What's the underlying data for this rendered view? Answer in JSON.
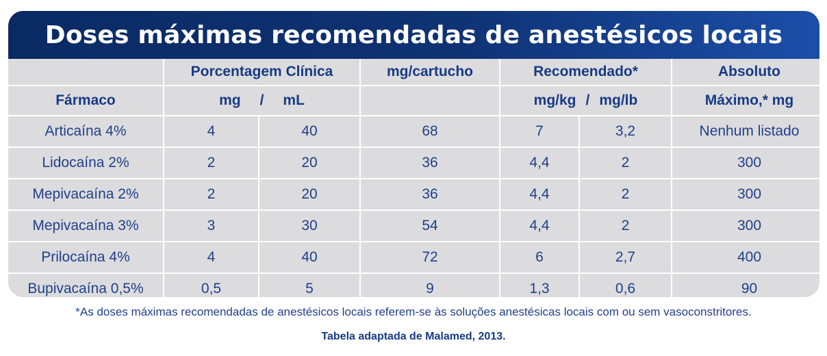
{
  "title": "Doses máximas recomendadas de anestésicos locais",
  "header_row1": {
    "col1": "",
    "porcentagem": "Porcentagem Clínica",
    "mg_cartucho": "mg/cartucho",
    "recomendado": "Recomendado*",
    "absoluto": "Absoluto"
  },
  "header_row2": {
    "farmaco": "Fármaco",
    "mg": "mg",
    "slash1": "/",
    "ml": "mL",
    "mgkg": "mg/kg",
    "slash2": "/",
    "mglb": "mg/lb",
    "maximo": "Máximo,* mg"
  },
  "rows": [
    {
      "farmaco": "Articaína 4%",
      "mg": "4",
      "ml": "40",
      "mg_cartucho": "68",
      "mgkg": "7",
      "mglb": "3,2",
      "maximo": "Nenhum listado"
    },
    {
      "farmaco": "Lidocaína 2%",
      "mg": "2",
      "ml": "20",
      "mg_cartucho": "36",
      "mgkg": "4,4",
      "mglb": "2",
      "maximo": "300"
    },
    {
      "farmaco": "Mepivacaína 2%",
      "mg": "2",
      "ml": "20",
      "mg_cartucho": "36",
      "mgkg": "4,4",
      "mglb": "2",
      "maximo": "300"
    },
    {
      "farmaco": "Mepivacaína 3%",
      "mg": "3",
      "ml": "30",
      "mg_cartucho": "54",
      "mgkg": "4,4",
      "mglb": "2",
      "maximo": "300"
    },
    {
      "farmaco": "Prilocaína 4%",
      "mg": "4",
      "ml": "40",
      "mg_cartucho": "72",
      "mgkg": "6",
      "mglb": "2,7",
      "maximo": "400"
    },
    {
      "farmaco": "Bupivacaína 0,5%",
      "mg": "0,5",
      "ml": "5",
      "mg_cartucho": "9",
      "mgkg": "1,3",
      "mglb": "0,6",
      "maximo": "90"
    }
  ],
  "footnote": "*As doses máximas recomendadas de anestésicos locais referem-se às soluções anestésicas locais com ou sem vasoconstritores.",
  "source": "Tabela adaptada de Malamed, 2013.",
  "colors": {
    "title_bg": "#0f3273",
    "cell_bg": "#dcdcde",
    "text": "#1f3f8a"
  }
}
